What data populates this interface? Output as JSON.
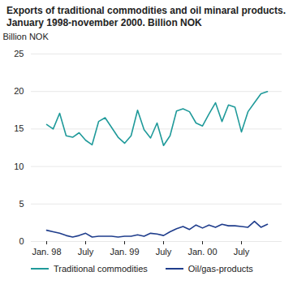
{
  "chart_data": {
    "type": "line",
    "title": "Exports of traditional commodities and oil minaral products. January 1998-november 2000. Billion NOK",
    "y_label": "Billion NOK",
    "categories": [
      "Jan. 98",
      null,
      null,
      null,
      null,
      null,
      "July",
      null,
      null,
      null,
      null,
      null,
      "Jan. 99",
      null,
      null,
      null,
      null,
      null,
      "July",
      null,
      null,
      null,
      null,
      null,
      "Jan. 00",
      null,
      null,
      null,
      null,
      null,
      "July",
      null,
      null,
      null,
      null
    ],
    "series": [
      {
        "name": "Traditional commodities",
        "color": "#1f9a9a",
        "values": [
          15.6,
          15.0,
          17.1,
          14.1,
          13.9,
          14.5,
          13.5,
          12.9,
          16.0,
          16.5,
          15.2,
          13.9,
          13.1,
          14.1,
          17.5,
          14.9,
          13.8,
          15.8,
          12.8,
          14.1,
          17.4,
          17.7,
          17.3,
          15.8,
          15.4,
          17.0,
          18.5,
          16.0,
          18.2,
          17.9,
          14.6,
          17.3,
          18.5,
          19.7,
          20.0
        ]
      },
      {
        "name": "Oil/gas-products",
        "color": "#1f3d8c",
        "values": [
          1.5,
          1.3,
          1.1,
          0.8,
          0.6,
          0.8,
          1.1,
          0.6,
          0.7,
          0.7,
          0.7,
          0.6,
          0.7,
          0.7,
          0.9,
          0.7,
          1.1,
          1.0,
          0.8,
          1.3,
          1.7,
          2.0,
          1.6,
          2.2,
          1.8,
          2.2,
          1.9,
          2.3,
          2.1,
          2.1,
          2.0,
          1.9,
          2.7,
          1.9,
          2.3
        ]
      }
    ],
    "ylim": [
      0,
      25
    ],
    "yticks": [
      0,
      5,
      10,
      15,
      20,
      25
    ],
    "grid": true,
    "legend": "bottom"
  }
}
